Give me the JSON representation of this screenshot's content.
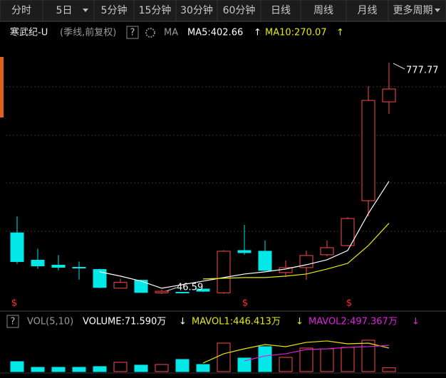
{
  "toolbar": {
    "tabs": [
      "分时",
      "5日",
      "5分钟",
      "15分钟",
      "30分钟",
      "60分钟",
      "日线",
      "周线",
      "月线",
      "更多周期"
    ]
  },
  "price_legend": {
    "name": "寒武纪-U",
    "mode": "(季线,前复权)",
    "help": "?",
    "indicator": "MA",
    "ma5": "MA5:402.66",
    "ma10": "MA10:270.07"
  },
  "volume_legend": {
    "help": "?",
    "indicator": "VOL(5,10)",
    "volume": "VOLUME:71.590万",
    "mavol1": "MAVOL1:446.413万",
    "mavol2": "MAVOL2:497.367万"
  },
  "chart_data": {
    "type": "candlestick",
    "up_color": "#ff4a4a",
    "down_color": "#00e8e8",
    "ma5_color": "#ffffff",
    "ma10_color": "#e8e800",
    "mavol1_color": "#e8e800",
    "mavol2_color": "#e020e0",
    "ylim": [
      8,
      886
    ],
    "vlim": [
      0,
      810
    ],
    "open": [
      239.6,
      153.3,
      137.4,
      130.6,
      123.8,
      64.7,
      89.7,
      50,
      52,
      62,
      50,
      183.8,
      181.5,
      114,
      129.8,
      170.3,
      199.5,
      341.3,
      654
    ],
    "close": [
      148.8,
      135.1,
      130.6,
      128.4,
      67,
      82.9,
      51.1,
      55,
      50,
      55,
      181.5,
      177,
      120.8,
      129.8,
      168,
      192.8,
      285,
      658.5,
      694.5
    ],
    "high": [
      291.8,
      189.6,
      169.2,
      148.8,
      126.1,
      94.3,
      92,
      60,
      53,
      63,
      185,
      264.8,
      215.3,
      152.3,
      183.8,
      215.3,
      289.5,
      703.5,
      777.77
    ],
    "low": [
      142,
      126.1,
      121.5,
      92,
      64.7,
      64.7,
      51.1,
      46.59,
      48,
      52,
      47,
      170.3,
      118.5,
      100.5,
      91.5,
      165.8,
      197.3,
      291.8,
      615.8
    ],
    "ma5": [
      null,
      null,
      null,
      null,
      116.3,
      102.8,
      87,
      64.5,
      75.8,
      87,
      98.3,
      109.5,
      116.3,
      125.3,
      138.8,
      154.5,
      183.8,
      300.8,
      402.66
    ],
    "ma10": [
      null,
      null,
      null,
      null,
      null,
      null,
      null,
      null,
      null,
      93.8,
      96,
      98.3,
      98.3,
      102.8,
      109.5,
      125.3,
      143.3,
      199.5,
      270.07
    ],
    "volume": [
      189,
      81,
      81,
      81,
      95,
      176,
      122,
      135,
      230,
      135,
      540,
      257,
      473,
      270,
      446,
      432,
      459,
      595,
      71.59
    ],
    "mavol1": [
      null,
      null,
      null,
      null,
      null,
      null,
      null,
      null,
      null,
      162,
      338,
      432,
      513,
      473,
      554,
      581,
      527,
      540,
      446.413
    ],
    "mavol2": [
      null,
      null,
      null,
      null,
      null,
      null,
      null,
      null,
      null,
      null,
      null,
      203,
      297,
      338,
      419,
      432,
      459,
      473,
      497.367
    ],
    "annotations": [
      {
        "text": "777.77"
      },
      {
        "text": "46.59"
      }
    ]
  }
}
